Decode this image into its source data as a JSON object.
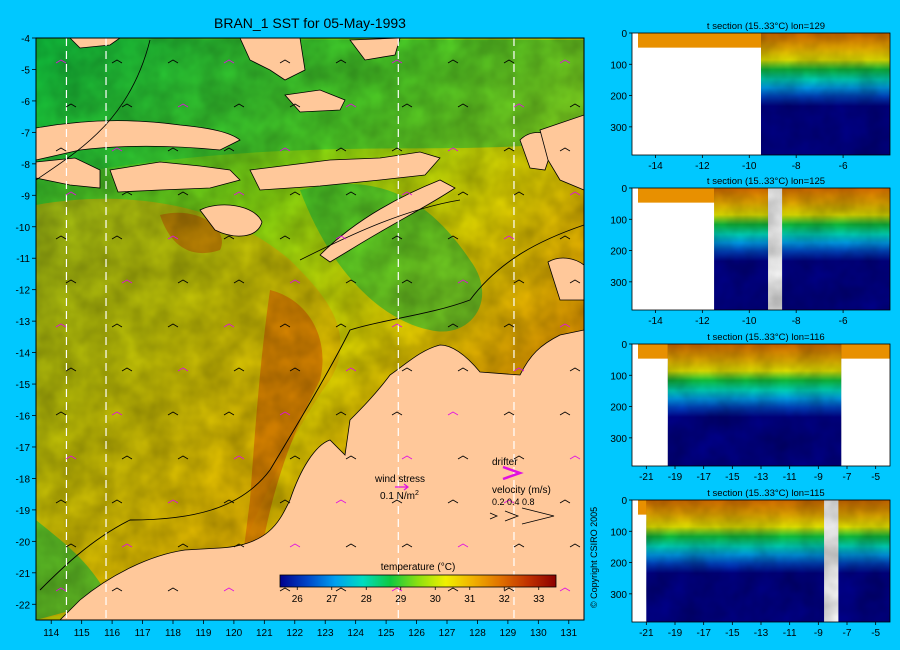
{
  "colors": {
    "background": "#00c8ff",
    "land": "#ffc89a",
    "white": "#ffffff",
    "colormap": [
      "#00008c",
      "#0046c8",
      "#00a0f0",
      "#00dcc0",
      "#10c840",
      "#8ce010",
      "#f0f000",
      "#f0b000",
      "#e07000",
      "#c03000",
      "#8c0000"
    ]
  },
  "chart_data": [
    {
      "type": "heatmap",
      "title": "BRAN_1 SST for 05-May-1993",
      "xlim": [
        113.5,
        131.5
      ],
      "ylim": [
        -22.5,
        -4
      ],
      "xticks": [
        "114",
        "115",
        "116",
        "117",
        "118",
        "119",
        "120",
        "121",
        "122",
        "123",
        "124",
        "125",
        "126",
        "127",
        "128",
        "129",
        "130",
        "131"
      ],
      "yticks": [
        "-4",
        "-5",
        "-6",
        "-7",
        "-8",
        "-9",
        "-10",
        "-11",
        "-12",
        "-13",
        "-14",
        "-15",
        "-16",
        "-17",
        "-18",
        "-19",
        "-20",
        "-21",
        "-22"
      ],
      "section_lines_lon": [
        114.5,
        115.8,
        125.4,
        129.2
      ],
      "colorbar": {
        "label": "temperature (°C)",
        "range": [
          25.5,
          33.5
        ],
        "ticks": [
          "26",
          "27",
          "28",
          "29",
          "30",
          "31",
          "32",
          "33"
        ]
      },
      "legend": {
        "wind_label": "wind stress",
        "wind_scale": "0.1 N/m",
        "wind_scale_sup": "2",
        "drifter_label": "drifter",
        "velocity_label": "velocity (m/s)",
        "velocity_ticks": "0.2 0.4 0.8"
      },
      "copyright": "© Copyright CSIRO 2005"
    },
    {
      "type": "heatmap",
      "title": "t section (15..33°C) lon=129",
      "xlim": [
        -15,
        -4
      ],
      "ylim": [
        0,
        390
      ],
      "xticks": [
        "-14",
        "-12",
        "-10",
        "-8",
        "-6"
      ],
      "yticks": [
        "0",
        "100",
        "200",
        "300"
      ],
      "shelf_edge_lat": -9.5
    },
    {
      "type": "heatmap",
      "title": "t section (15..33°C) lon=125",
      "xlim": [
        -15,
        -4
      ],
      "ylim": [
        0,
        390
      ],
      "xticks": [
        "-14",
        "-12",
        "-10",
        "-8",
        "-6"
      ],
      "yticks": [
        "0",
        "100",
        "200",
        "300"
      ],
      "shelf_edge_lat": -11.5,
      "gap_lat": [
        -9.2,
        -8.6
      ]
    },
    {
      "type": "heatmap",
      "title": "t section (15..33°C) lon=116",
      "xlim": [
        -22,
        -4
      ],
      "ylim": [
        0,
        390
      ],
      "xticks": [
        "-21",
        "-19",
        "-17",
        "-15",
        "-13",
        "-11",
        "-9",
        "-7",
        "-5"
      ],
      "yticks": [
        "0",
        "100",
        "200",
        "300"
      ],
      "shelf_edge_lat": -19.5,
      "north_edge_lat": -7.4
    },
    {
      "type": "heatmap",
      "title": "t section (15..33°C) lon=115",
      "xlim": [
        -22,
        -4
      ],
      "ylim": [
        0,
        390
      ],
      "xticks": [
        "-21",
        "-19",
        "-17",
        "-15",
        "-13",
        "-11",
        "-9",
        "-7",
        "-5"
      ],
      "yticks": [
        "0",
        "100",
        "200",
        "300"
      ],
      "shelf_edge_lat": -21,
      "gap_lat": [
        -8.6,
        -7.6
      ]
    }
  ]
}
